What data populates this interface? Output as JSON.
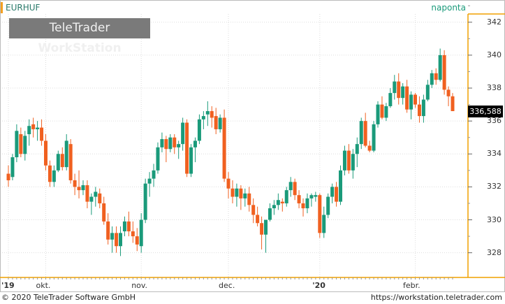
{
  "header": {
    "symbol": "EURHUF",
    "period": "naponta"
  },
  "brand": {
    "part1": "TeleTrader ",
    "part2": "WorkStation"
  },
  "footer": {
    "copyright": "© 2020 TeleTrader Software GmbH",
    "url": "https://workstation.teletrader.com"
  },
  "last_price": "336,588",
  "colors": {
    "up": "#1a9a7a",
    "down": "#f06020",
    "axis": "#f0a000",
    "grid": "#dddddd"
  },
  "chart_data": {
    "type": "candlestick",
    "ylim": [
      326.5,
      342.5
    ],
    "y_ticks": [
      {
        "v": 328,
        "label": "328"
      },
      {
        "v": 330,
        "label": "330"
      },
      {
        "v": 332,
        "label": "332"
      },
      {
        "v": 334,
        "label": "334"
      },
      {
        "v": 336,
        "label": "336"
      },
      {
        "v": 338,
        "label": "338"
      },
      {
        "v": 340,
        "label": "340"
      },
      {
        "v": 342,
        "label": "342"
      }
    ],
    "x_ticks": [
      {
        "i": 0,
        "label": "'19"
      },
      {
        "i": 9,
        "label": "okt."
      },
      {
        "i": 32,
        "label": "nov."
      },
      {
        "i": 53,
        "label": "dec."
      },
      {
        "i": 75,
        "label": "'20"
      },
      {
        "i": 98,
        "label": "febr."
      }
    ],
    "last": 336.588,
    "candles": [
      [
        332.8,
        333.3,
        332.0,
        332.4
      ],
      [
        332.6,
        334.0,
        332.4,
        333.8
      ],
      [
        333.8,
        335.8,
        333.5,
        335.4
      ],
      [
        335.2,
        335.6,
        333.8,
        334.0
      ],
      [
        334.0,
        335.4,
        333.6,
        335.1
      ],
      [
        335.2,
        336.1,
        334.5,
        335.7
      ],
      [
        335.8,
        336.2,
        335.0,
        335.5
      ],
      [
        335.5,
        336.0,
        334.8,
        335.6
      ],
      [
        335.6,
        336.1,
        334.5,
        334.8
      ],
      [
        334.8,
        335.2,
        333.0,
        333.3
      ],
      [
        333.3,
        333.6,
        332.0,
        332.3
      ],
      [
        332.3,
        333.3,
        332.0,
        333.0
      ],
      [
        333.0,
        334.2,
        332.9,
        334.0
      ],
      [
        334.0,
        334.4,
        333.0,
        333.2
      ],
      [
        333.2,
        335.2,
        333.0,
        334.8
      ],
      [
        334.6,
        334.9,
        332.2,
        332.4
      ],
      [
        332.4,
        332.8,
        331.5,
        332.0
      ],
      [
        332.0,
        333.0,
        331.3,
        331.8
      ],
      [
        331.8,
        332.4,
        331.5,
        332.1
      ],
      [
        332.1,
        332.4,
        330.7,
        331.1
      ],
      [
        331.1,
        331.6,
        330.3,
        331.4
      ],
      [
        331.4,
        332.0,
        330.8,
        331.7
      ],
      [
        331.6,
        331.9,
        330.7,
        331.0
      ],
      [
        331.0,
        331.4,
        329.7,
        329.9
      ],
      [
        329.9,
        330.4,
        328.5,
        328.8
      ],
      [
        328.8,
        329.6,
        328.0,
        329.2
      ],
      [
        329.2,
        329.6,
        328.0,
        328.4
      ],
      [
        328.4,
        329.6,
        327.8,
        329.2
      ],
      [
        329.3,
        330.2,
        329.0,
        329.9
      ],
      [
        329.9,
        330.5,
        329.0,
        329.3
      ],
      [
        329.3,
        329.9,
        328.6,
        329.0
      ],
      [
        329.0,
        329.5,
        328.1,
        328.5
      ],
      [
        328.4,
        330.4,
        328.0,
        330.0
      ],
      [
        330.0,
        332.5,
        329.8,
        332.2
      ],
      [
        332.2,
        332.9,
        331.4,
        332.5
      ],
      [
        332.5,
        333.4,
        332.0,
        333.0
      ],
      [
        333.0,
        334.7,
        332.8,
        334.4
      ],
      [
        334.4,
        335.3,
        334.1,
        334.9
      ],
      [
        334.9,
        335.1,
        333.5,
        334.3
      ],
      [
        334.3,
        335.2,
        334.1,
        335.0
      ],
      [
        335.0,
        335.2,
        334.0,
        334.4
      ],
      [
        334.4,
        334.8,
        333.7,
        334.6
      ],
      [
        334.6,
        336.2,
        334.2,
        335.9
      ],
      [
        335.9,
        336.1,
        332.6,
        332.8
      ],
      [
        332.8,
        334.6,
        332.6,
        334.4
      ],
      [
        334.4,
        335.0,
        333.5,
        334.8
      ],
      [
        334.8,
        336.4,
        334.6,
        336.1
      ],
      [
        336.1,
        336.6,
        335.5,
        336.3
      ],
      [
        336.4,
        337.2,
        335.7,
        336.6
      ],
      [
        336.6,
        336.9,
        335.6,
        336.2
      ],
      [
        336.3,
        336.8,
        335.2,
        335.5
      ],
      [
        335.5,
        336.4,
        335.3,
        336.2
      ],
      [
        336.2,
        336.7,
        332.3,
        332.5
      ],
      [
        332.5,
        332.9,
        331.3,
        331.9
      ],
      [
        331.9,
        332.4,
        331.0,
        331.4
      ],
      [
        331.4,
        332.2,
        330.8,
        331.9
      ],
      [
        331.9,
        332.1,
        330.6,
        331.3
      ],
      [
        331.3,
        331.9,
        330.8,
        331.6
      ],
      [
        331.6,
        332.0,
        330.5,
        330.9
      ],
      [
        330.9,
        331.3,
        329.8,
        330.3
      ],
      [
        330.3,
        330.8,
        329.6,
        329.8
      ],
      [
        329.8,
        330.2,
        328.2,
        329.1
      ],
      [
        329.1,
        330.0,
        328.0,
        330.0
      ],
      [
        330.0,
        331.0,
        329.9,
        330.7
      ],
      [
        330.7,
        331.2,
        330.3,
        330.9
      ],
      [
        330.9,
        331.6,
        330.6,
        331.2
      ],
      [
        331.1,
        331.3,
        330.5,
        331.0
      ],
      [
        331.0,
        332.0,
        330.8,
        331.8
      ],
      [
        331.8,
        332.6,
        331.4,
        332.3
      ],
      [
        332.3,
        332.5,
        331.2,
        331.5
      ],
      [
        331.5,
        331.8,
        330.7,
        331.0
      ],
      [
        331.0,
        331.3,
        330.2,
        330.7
      ],
      [
        330.7,
        331.6,
        330.4,
        331.3
      ],
      [
        331.3,
        331.6,
        330.8,
        331.5
      ],
      [
        331.4,
        331.7,
        331.1,
        331.5
      ],
      [
        331.5,
        331.6,
        328.9,
        329.2
      ],
      [
        329.2,
        330.8,
        328.9,
        330.3
      ],
      [
        330.3,
        331.6,
        330.1,
        331.4
      ],
      [
        331.4,
        332.2,
        331.0,
        332.0
      ],
      [
        332.0,
        332.3,
        330.8,
        331.1
      ],
      [
        331.1,
        333.3,
        330.9,
        333.0
      ],
      [
        333.0,
        334.5,
        332.7,
        334.2
      ],
      [
        334.2,
        334.6,
        332.8,
        333.0
      ],
      [
        333.0,
        334.3,
        332.5,
        334.0
      ],
      [
        334.0,
        335.0,
        333.2,
        334.6
      ],
      [
        334.6,
        336.2,
        334.3,
        336.0
      ],
      [
        336.0,
        336.5,
        334.4,
        334.5
      ],
      [
        334.5,
        334.8,
        334.1,
        334.2
      ],
      [
        334.2,
        336.0,
        334.1,
        335.8
      ],
      [
        335.8,
        337.2,
        335.6,
        337.0
      ],
      [
        337.0,
        337.5,
        336.1,
        336.2
      ],
      [
        336.2,
        337.1,
        336.0,
        336.9
      ],
      [
        336.9,
        338.0,
        336.8,
        337.7
      ],
      [
        337.7,
        338.8,
        337.3,
        338.4
      ],
      [
        338.4,
        338.9,
        337.0,
        337.4
      ],
      [
        337.4,
        338.3,
        337.0,
        338.1
      ],
      [
        338.1,
        338.5,
        336.5,
        336.7
      ],
      [
        336.7,
        337.8,
        336.1,
        337.6
      ],
      [
        337.6,
        337.7,
        336.8,
        337.0
      ],
      [
        337.0,
        337.5,
        335.9,
        336.3
      ],
      [
        336.3,
        337.6,
        335.9,
        337.3
      ],
      [
        337.3,
        338.5,
        337.2,
        338.2
      ],
      [
        338.2,
        339.1,
        338.0,
        338.9
      ],
      [
        338.9,
        339.2,
        338.2,
        338.5
      ],
      [
        338.5,
        340.4,
        338.4,
        340.0
      ],
      [
        340.0,
        340.3,
        337.6,
        337.9
      ],
      [
        337.9,
        338.1,
        336.9,
        337.5
      ],
      [
        337.5,
        337.7,
        336.6,
        336.6
      ]
    ]
  }
}
